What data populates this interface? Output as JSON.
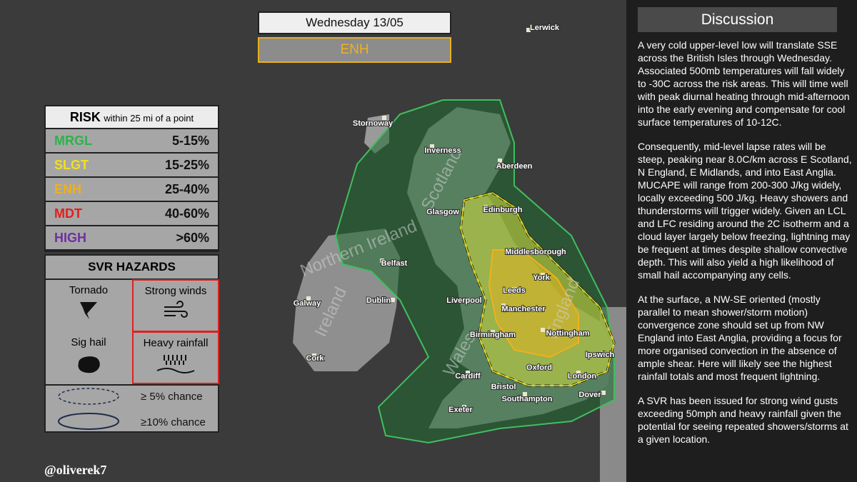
{
  "header": {
    "date": "Wednesday 13/05",
    "risk_level": "ENH"
  },
  "risk_table": {
    "title": "RISK",
    "subtitle": "within 25 mi of a point",
    "rows": [
      [
        "MRGL",
        "5-15%"
      ],
      [
        "SLGT",
        "15-25%"
      ],
      [
        "ENH",
        "25-40%"
      ],
      [
        "MDT",
        "40-60%"
      ],
      [
        "HIGH",
        ">60%"
      ]
    ]
  },
  "hazards": {
    "title": "SVR HAZARDS",
    "items": [
      "Tornado",
      "Strong winds",
      "Sig hail",
      "Heavy rainfall"
    ]
  },
  "legend": [
    "≥ 5% chance",
    "≥10% chance"
  ],
  "credit": "@oliverek7",
  "map": {
    "regions": [
      "Scotland",
      "Northern Ireland",
      "Ireland",
      "Wales",
      "England"
    ],
    "places": [
      "Lerwick",
      "Stornoway",
      "Inverness",
      "Aberdeen",
      "Glasgow",
      "Edinburgh",
      "Belfast",
      "Middlesborough",
      "York",
      "Leeds",
      "Manchester",
      "Liverpool",
      "Dublin",
      "Galway",
      "Birmingham",
      "Nottingham",
      "Cork",
      "Ipswich",
      "Oxford",
      "London",
      "Cardiff",
      "Bristol",
      "Southampton",
      "Dover",
      "Exeter"
    ]
  },
  "discussion": {
    "title": "Discussion",
    "paragraphs": [
      "A very cold upper-level low will translate SSE across the British Isles through Wednesday. Associated 500mb temperatures will fall widely to -30C across the risk areas. This will time well with peak diurnal heating through mid-afternoon into the early evening and compensate for cool surface temperatures of 10-12C.",
      "Consequently, mid-level lapse rates will be steep, peaking near 8.0C/km across E Scotland, N England, E Midlands, and into East Anglia. MUCAPE will range from 200-300 J/kg widely, locally exceeding 500 J/kg. Heavy showers and thunderstorms will trigger widely. Given an LCL and LFC residing around the 2C isotherm and a cloud layer largely below freezing, lightning may be frequent at times despite shallow convective depth. This will also yield a high likelihood of small hail accompanying any cells.",
      "At the surface, a NW-SE oriented (mostly parallel to mean shower/storm motion) convergence zone should set up from NW England into East Anglia, providing a focus for more organised convection in the absence of ample shear. Here will likely see the highest rainfall totals and most frequent lightning.",
      "A SVR has been issued for strong wind gusts exceeding 50mph and heavy rainfall given the potential for seeing repeated showers/storms at a given location."
    ]
  }
}
